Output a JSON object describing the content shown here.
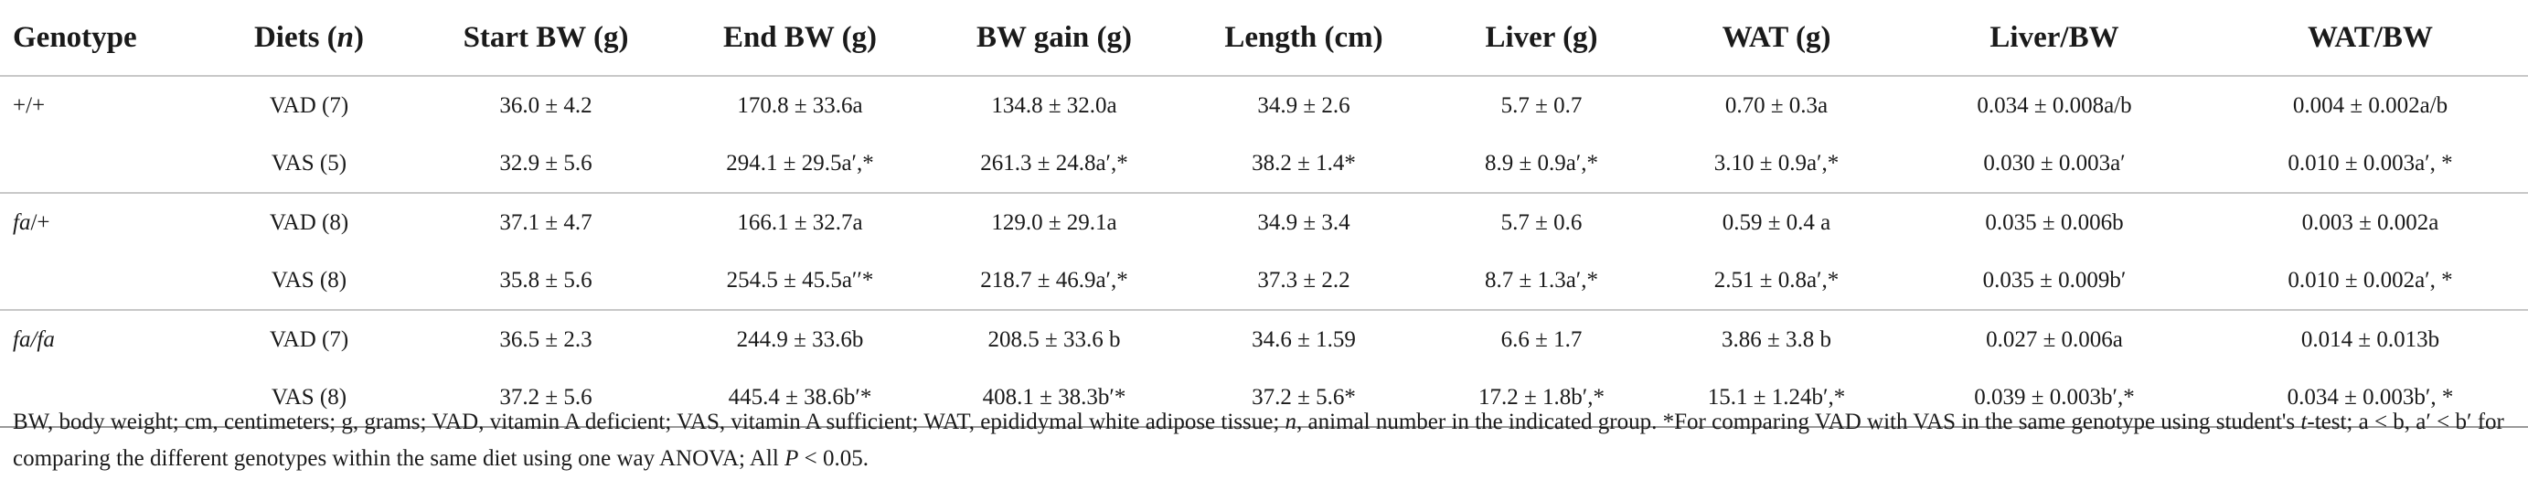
{
  "headers": [
    {
      "pre": "Genotype",
      "ital": "",
      "post": ""
    },
    {
      "pre": "Diets (",
      "ital": "n",
      "post": ")"
    },
    {
      "pre": "Start BW (g)",
      "ital": "",
      "post": ""
    },
    {
      "pre": "End BW (g)",
      "ital": "",
      "post": ""
    },
    {
      "pre": "BW gain (g)",
      "ital": "",
      "post": ""
    },
    {
      "pre": "Length (cm)",
      "ital": "",
      "post": ""
    },
    {
      "pre": "Liver (g)",
      "ital": "",
      "post": ""
    },
    {
      "pre": "WAT (g)",
      "ital": "",
      "post": ""
    },
    {
      "pre": "Liver/BW",
      "ital": "",
      "post": ""
    },
    {
      "pre": "WAT/BW",
      "ital": "",
      "post": ""
    }
  ],
  "rows": [
    {
      "genotype_plain": "+/+",
      "genotype_ital": "",
      "genotype_rest": "",
      "diet": "VAD (7)",
      "start_bw": "36.0 ± 4.2",
      "end_bw": "170.8 ± 33.6a",
      "bw_gain": "134.8 ± 32.0a",
      "length": "34.9 ± 2.6",
      "liver": "5.7 ± 0.7",
      "wat": "0.70 ± 0.3a",
      "liver_bw": "0.034 ± 0.008a/b",
      "wat_bw": "0.004 ± 0.002a/b"
    },
    {
      "genotype_plain": "",
      "genotype_ital": "",
      "genotype_rest": "",
      "diet": "VAS (5)",
      "start_bw": "32.9 ± 5.6",
      "end_bw": "294.1 ± 29.5a′,*",
      "bw_gain": "261.3 ± 24.8a′,*",
      "length": "38.2 ± 1.4*",
      "liver": "8.9 ± 0.9a′,*",
      "wat": "3.10 ± 0.9a′,*",
      "liver_bw": "0.030 ± 0.003a′",
      "wat_bw": "0.010 ± 0.003a′, *"
    },
    {
      "genotype_plain": "",
      "genotype_ital": "fa",
      "genotype_rest": "/+",
      "diet": "VAD (8)",
      "start_bw": "37.1 ± 4.7",
      "end_bw": "166.1 ± 32.7a",
      "bw_gain": "129.0 ± 29.1a",
      "length": "34.9 ± 3.4",
      "liver": "5.7 ± 0.6",
      "wat": "0.59 ± 0.4 a",
      "liver_bw": "0.035 ± 0.006b",
      "wat_bw": "0.003 ± 0.002a"
    },
    {
      "genotype_plain": "",
      "genotype_ital": "",
      "genotype_rest": "",
      "diet": "VAS (8)",
      "start_bw": "35.8 ± 5.6",
      "end_bw": "254.5 ± 45.5a′′*",
      "bw_gain": "218.7 ± 46.9a′,*",
      "length": "37.3 ± 2.2",
      "liver": "8.7 ± 1.3a′,*",
      "wat": "2.51 ± 0.8a′,*",
      "liver_bw": "0.035 ± 0.009b′",
      "wat_bw": "0.010 ± 0.002a′, *"
    },
    {
      "genotype_plain": "",
      "genotype_ital": "fa/fa",
      "genotype_rest": "",
      "diet": "VAD (7)",
      "start_bw": "36.5 ± 2.3",
      "end_bw": "244.9 ± 33.6b",
      "bw_gain": "208.5 ± 33.6 b",
      "length": "34.6 ± 1.59",
      "liver": "6.6 ± 1.7",
      "wat": "3.86 ± 3.8 b",
      "liver_bw": "0.027 ± 0.006a",
      "wat_bw": "0.014 ± 0.013b"
    },
    {
      "genotype_plain": "",
      "genotype_ital": "",
      "genotype_rest": "",
      "diet": "VAS (8)",
      "start_bw": "37.2 ± 5.6",
      "end_bw": "445.4 ± 38.6b′*",
      "bw_gain": "408.1 ± 38.3b′*",
      "length": "37.2 ± 5.6*",
      "liver": "17.2 ± 1.8b′,*",
      "wat": "15.1 ± 1.24b′,*",
      "liver_bw": "0.039 ± 0.003b′,*",
      "wat_bw": "0.034 ± 0.003b′, *"
    }
  ],
  "footnote": {
    "part1": "BW, body weight; cm, centimeters; g, grams; VAD, vitamin A deficient; VAS, vitamin A sufficient; WAT, epididymal white adipose tissue; ",
    "n_ital": "n",
    "part2": ", animal number in the indicated group. *For comparing VAD with VAS in the same genotype using student's ",
    "t_ital": "t",
    "part3": "-test; a < b, a′ < b′ for comparing the different genotypes within the same diet using one way ANOVA; All ",
    "p_ital": "P",
    "part4": " < 0.05."
  }
}
